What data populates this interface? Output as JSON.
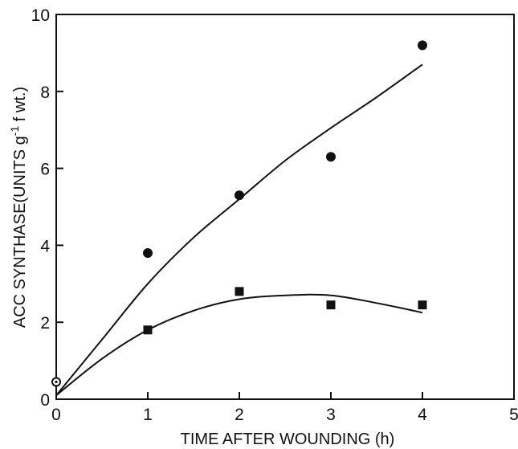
{
  "chart_data": {
    "type": "scatter",
    "xlabel": "TIME AFTER WOUNDING (h)",
    "ylabel_text": "ACC SYNTHASE(UNITS g",
    "ylabel_sup": "-1",
    "ylabel_tail": " f wt.)",
    "xlim": [
      0,
      5
    ],
    "ylim": [
      0,
      10
    ],
    "x_ticks": [
      "0",
      "1",
      "2",
      "3",
      "4",
      "5"
    ],
    "y_ticks": [
      "0",
      "2",
      "4",
      "6",
      "8",
      "10"
    ],
    "x_tick_values": [
      0,
      1,
      2,
      3,
      4,
      5
    ],
    "y_tick_values": [
      0,
      2,
      4,
      6,
      8,
      10
    ],
    "grid": false,
    "series": [
      {
        "marker": "circle",
        "color": "#111111",
        "x": [
          1,
          2,
          3,
          4
        ],
        "y": [
          3.8,
          5.3,
          6.3,
          9.2
        ],
        "fit_curve": {
          "x": [
            0,
            0.5,
            1,
            1.5,
            2,
            2.5,
            3,
            3.5,
            4
          ],
          "y": [
            0.1,
            1.55,
            3.0,
            4.2,
            5.2,
            6.2,
            7.05,
            7.85,
            8.7
          ]
        }
      },
      {
        "marker": "square",
        "color": "#111111",
        "x": [
          1,
          2,
          3,
          4
        ],
        "y": [
          1.8,
          2.8,
          2.45,
          2.45
        ],
        "fit_curve": {
          "x": [
            0,
            0.5,
            1,
            1.5,
            2,
            2.5,
            3,
            3.5,
            4
          ],
          "y": [
            0.1,
            1.05,
            1.8,
            2.3,
            2.6,
            2.7,
            2.7,
            2.5,
            2.25
          ]
        }
      }
    ],
    "origin_point": {
      "marker": "open-circle",
      "x": 0,
      "y": 0.45
    }
  }
}
